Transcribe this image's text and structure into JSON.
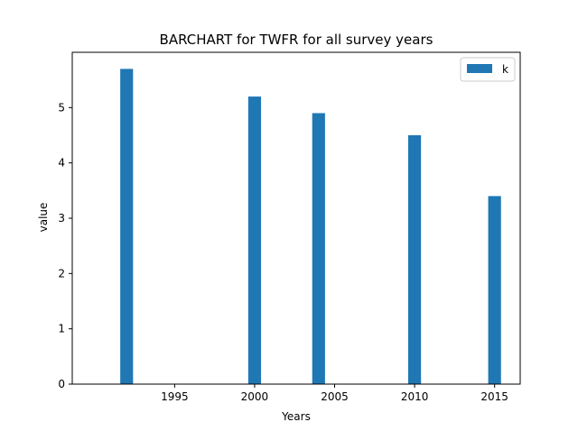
{
  "chart_data": {
    "type": "bar",
    "title": "BARCHART for TWFR for all survey years",
    "xlabel": "Years",
    "ylabel": "value",
    "x": [
      1992,
      2000,
      2004,
      2010,
      2015
    ],
    "series": [
      {
        "name": "k",
        "values": [
          5.7,
          5.2,
          4.9,
          4.5,
          3.4
        ],
        "color": "#1f77b4"
      }
    ],
    "xticks": [
      1995,
      2000,
      2005,
      2010,
      2015
    ],
    "yticks": [
      0,
      1,
      2,
      3,
      4,
      5
    ],
    "xlim": [
      1988.6,
      2016.6
    ],
    "ylim": [
      0,
      6
    ],
    "bar_width_years": 0.8,
    "legend_position": "top-right",
    "grid": false
  }
}
